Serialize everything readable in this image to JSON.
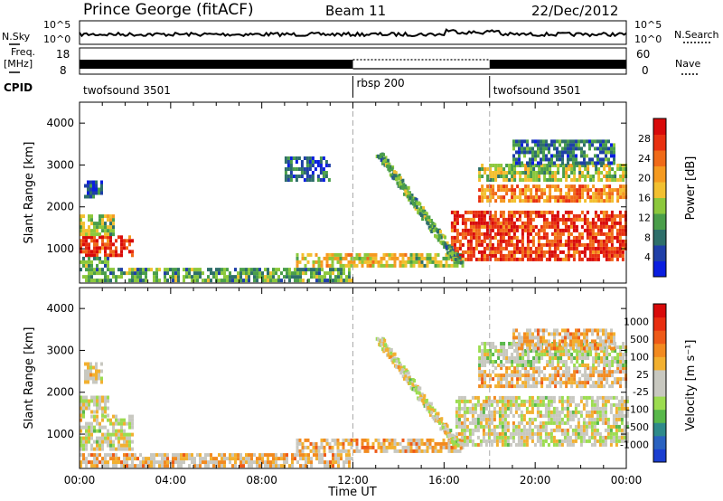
{
  "header": {
    "station": "Prince George (fitACF)",
    "beam": "Beam 11",
    "date": "22/Dec/2012"
  },
  "strips": {
    "nsky_label": "N.Sky",
    "nsky_ticks": [
      "10^5",
      "10^0"
    ],
    "nsearch_label": "N.Search",
    "nsearch_ticks": [
      "10^5",
      "10^0"
    ],
    "freq_label_1": "Freq.",
    "freq_label_2": "[MHz]",
    "freq_ticks": [
      "18",
      "8"
    ],
    "nave_label": "Nave",
    "nave_ticks": [
      "60",
      "0"
    ],
    "cpid_label": "CPID",
    "cpid_segments": [
      {
        "name": "twofsound 3501",
        "start_h": 0,
        "end_h": 12
      },
      {
        "name": "rbsp 200",
        "start_h": 12,
        "end_h": 18
      },
      {
        "name": "twofsound 3501",
        "start_h": 18,
        "end_h": 24
      }
    ]
  },
  "chart_data": [
    {
      "type": "heatmap",
      "id": "power",
      "ylabel": "Slant Range [km]",
      "xlim": [
        0,
        24
      ],
      "ylim": [
        180,
        4500
      ],
      "yticks": [
        "1000",
        "2000",
        "3000",
        "4000"
      ],
      "colorbar": {
        "label": "Power [dB]",
        "ticks": [
          "4",
          "8",
          "12",
          "16",
          "20",
          "24",
          "28"
        ],
        "colors": [
          "#0a1ee0",
          "#1f3fa8",
          "#2e6f6a",
          "#4a9e4a",
          "#8cc83c",
          "#f2c030",
          "#f59a20",
          "#f06a18",
          "#e83010",
          "#d80a0a"
        ]
      },
      "regions": [
        {
          "t": [
            0.0,
            2.3
          ],
          "r": [
            800,
            1300
          ],
          "level": 0.85
        },
        {
          "t": [
            0.0,
            1.5
          ],
          "r": [
            1300,
            1800
          ],
          "level": 0.45
        },
        {
          "t": [
            0.2,
            1.0
          ],
          "r": [
            2200,
            2600
          ],
          "level": 0.2
        },
        {
          "t": [
            0.0,
            1.2
          ],
          "r": [
            550,
            800
          ],
          "level": 0.35
        },
        {
          "t": [
            0.0,
            12.0
          ],
          "r": [
            200,
            500
          ],
          "level": 0.35
        },
        {
          "t": [
            9.5,
            14.5
          ],
          "r": [
            550,
            850
          ],
          "level": 0.55
        },
        {
          "t": [
            14.5,
            16.8
          ],
          "r": [
            550,
            850
          ],
          "level": 0.45
        },
        {
          "t": [
            9.0,
            11.0
          ],
          "r": [
            2600,
            3200
          ],
          "level": 0.2
        },
        {
          "t": [
            16.3,
            24.0
          ],
          "r": [
            700,
            1900
          ],
          "level": 0.85
        },
        {
          "t": [
            17.5,
            24.0
          ],
          "r": [
            2100,
            2500
          ],
          "level": 0.7
        },
        {
          "t": [
            17.5,
            24.0
          ],
          "r": [
            2600,
            3000
          ],
          "level": 0.45
        },
        {
          "t": [
            19.0,
            23.5
          ],
          "r": [
            3000,
            3600
          ],
          "level": 0.25
        }
      ],
      "streaks": [
        {
          "t": [
            13.0,
            16.5
          ],
          "r": [
            3300,
            700
          ],
          "level": 0.35
        }
      ]
    },
    {
      "type": "heatmap",
      "id": "velocity",
      "ylabel": "Slant Range [km]",
      "xlabel": "Time UT",
      "xlim": [
        0,
        24
      ],
      "ylim": [
        180,
        4500
      ],
      "yticks": [
        "1000",
        "2000",
        "3000",
        "4000"
      ],
      "xticks": [
        "00:00",
        "04:00",
        "08:00",
        "12:00",
        "16:00",
        "20:00",
        "00:00"
      ],
      "colorbar": {
        "label": "Velocity [m s⁻¹]",
        "ticks": [
          "1000",
          "500",
          "100",
          "25",
          "-25",
          "-100",
          "-500",
          "-1000"
        ],
        "colors": [
          "#1a3ed0",
          "#2a62c0",
          "#2e8a8a",
          "#58b84a",
          "#9cdc50",
          "#c8c8c0",
          "#c8c8c0",
          "#f2b030",
          "#f28a20",
          "#ee5a18",
          "#e82e10",
          "#d80a0a"
        ]
      },
      "regions": [
        {
          "t": [
            0.0,
            2.3
          ],
          "r": [
            600,
            1400
          ],
          "level": 0.5
        },
        {
          "t": [
            0.0,
            1.2
          ],
          "r": [
            1400,
            1900
          ],
          "level": 0.5
        },
        {
          "t": [
            0.2,
            1.0
          ],
          "r": [
            2200,
            2700
          ],
          "level": 0.55
        },
        {
          "t": [
            0.0,
            12.0
          ],
          "r": [
            200,
            500
          ],
          "level": 0.6
        },
        {
          "t": [
            9.5,
            16.8
          ],
          "r": [
            550,
            850
          ],
          "level": 0.62
        },
        {
          "t": [
            16.5,
            24.0
          ],
          "r": [
            700,
            1900
          ],
          "level": 0.5
        },
        {
          "t": [
            17.5,
            24.0
          ],
          "r": [
            2100,
            2600
          ],
          "level": 0.6
        },
        {
          "t": [
            17.5,
            24.0
          ],
          "r": [
            2600,
            3200
          ],
          "level": 0.45
        },
        {
          "t": [
            19.0,
            23.5
          ],
          "r": [
            3000,
            3500
          ],
          "level": 0.6
        }
      ],
      "streaks": [
        {
          "t": [
            13.0,
            16.5
          ],
          "r": [
            3300,
            700
          ],
          "level": 0.5
        }
      ]
    }
  ]
}
